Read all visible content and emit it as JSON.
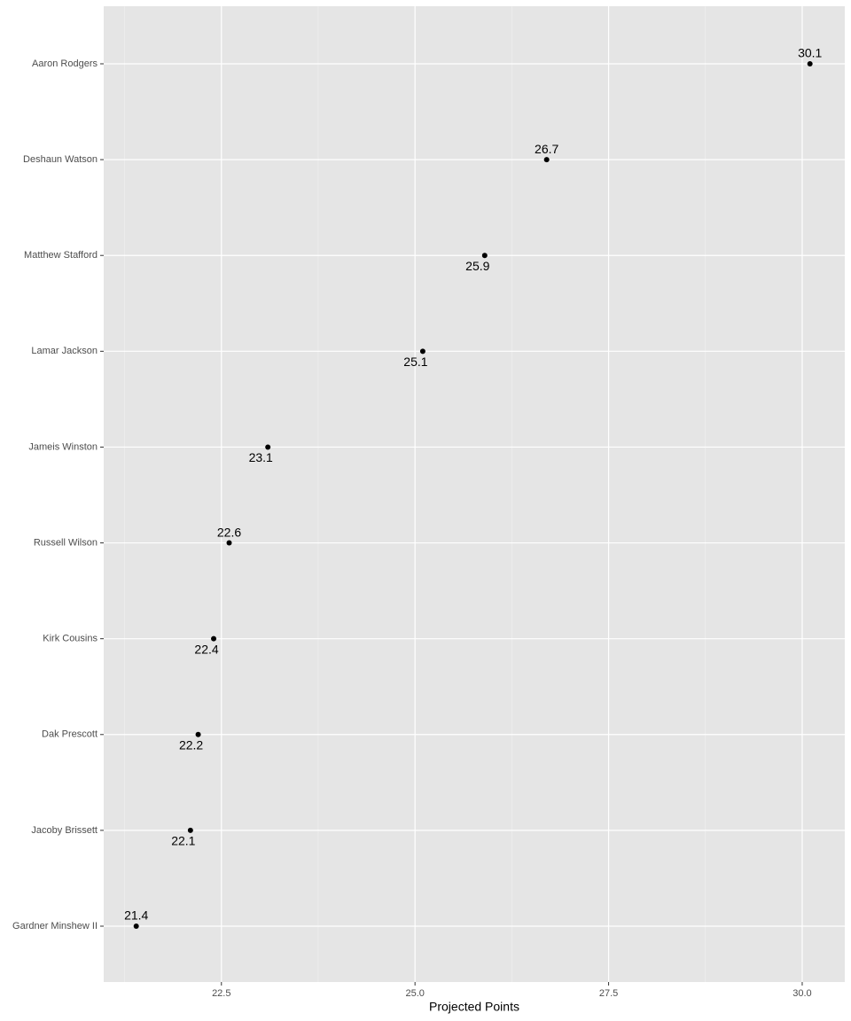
{
  "chart_data": {
    "type": "dot",
    "x_label": "Projected Points",
    "categories": [
      "Aaron Rodgers",
      "Deshaun Watson",
      "Matthew Stafford",
      "Lamar Jackson",
      "Jameis Winston",
      "Russell Wilson",
      "Kirk Cousins",
      "Dak Prescott",
      "Jacoby Brissett",
      "Gardner Minshew II"
    ],
    "values": [
      30.1,
      26.7,
      25.9,
      25.1,
      23.1,
      22.6,
      22.4,
      22.2,
      22.1,
      21.4
    ],
    "color": "#000000",
    "xlim": [
      20.98,
      30.55
    ],
    "xticks": [
      22.5,
      {
        "value": 25,
        "label": "25.0"
      },
      27.5,
      {
        "value": 30,
        "label": "30.0"
      }
    ],
    "xminorticks": [
      21.25,
      23.75,
      26.25,
      28.75
    ],
    "grid": true
  }
}
